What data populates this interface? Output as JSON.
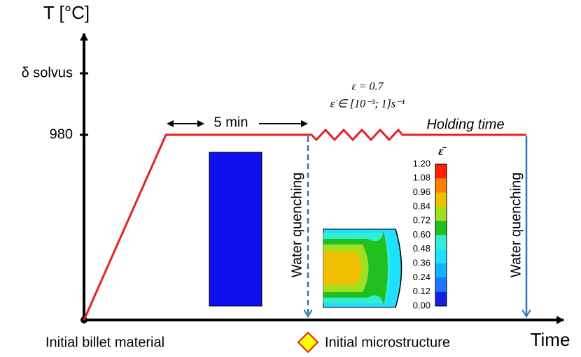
{
  "axes": {
    "y_label": "T [°C]",
    "x_label": "Time",
    "y_marks": [
      "δ solvus",
      "980"
    ]
  },
  "annotations": {
    "duration": "5 min",
    "strain": "ε = 0.7",
    "strain_rate": "ε̇ ∈ [10⁻³; 1]s⁻¹",
    "holding": "Holding time",
    "quench_1": "Water quenching",
    "quench_2": "Water quenching",
    "start": "Initial billet material",
    "microstructure": "Initial microstructure"
  },
  "colorbar": {
    "title": "ε̄",
    "labels": [
      "1.20",
      "1.08",
      "0.96",
      "0.84",
      "0.72",
      "0.60",
      "0.48",
      "0.36",
      "0.24",
      "0.12",
      "0.00"
    ]
  }
}
